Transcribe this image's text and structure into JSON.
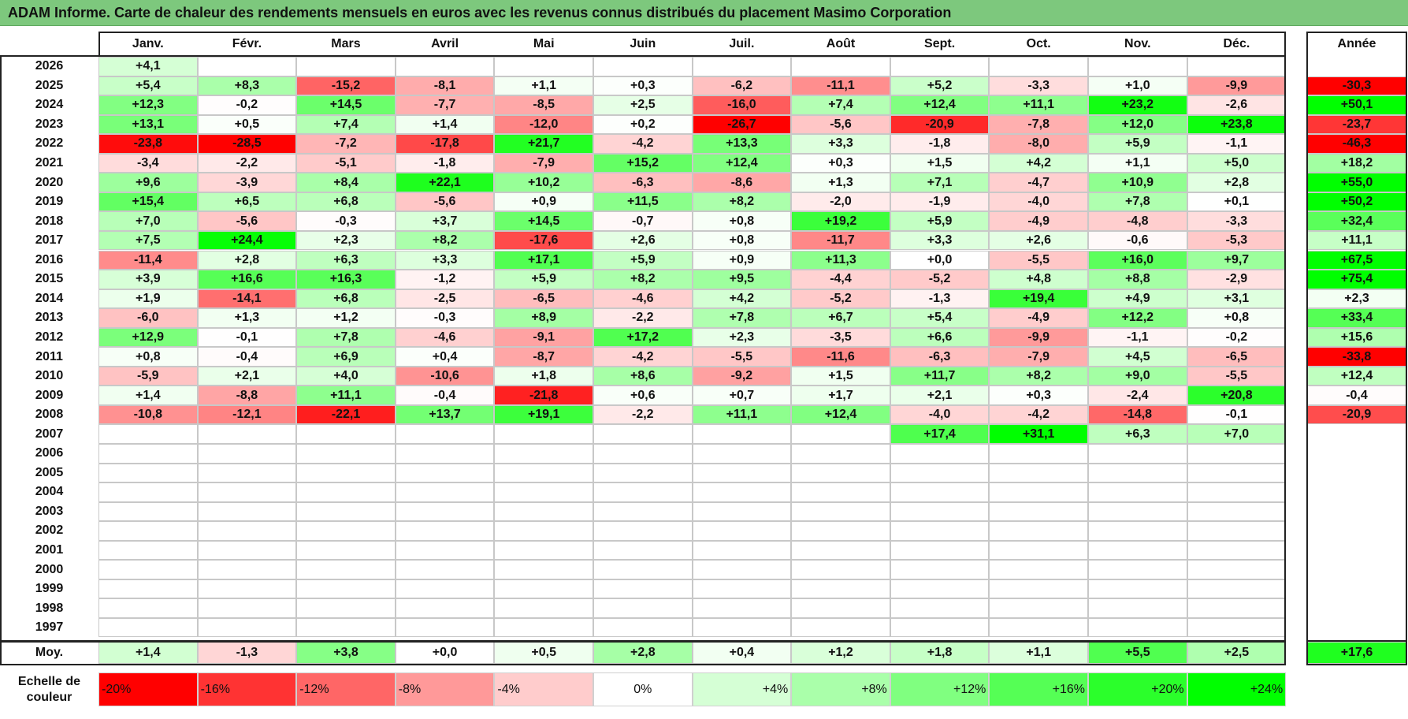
{
  "title": "ADAM Informe. Carte de chaleur des rendements mensuels en euros avec les revenus connus distribués du placement Masimo Corporation",
  "months": [
    "Janv.",
    "Févr.",
    "Mars",
    "Avril",
    "Mai",
    "Juin",
    "Juil.",
    "Août",
    "Sept.",
    "Oct.",
    "Nov.",
    "Déc."
  ],
  "year_header": "Année",
  "avg_label": "Moy.",
  "scale_label_line1": "Echelle de",
  "scale_label_line2": "couleur",
  "scale": [
    "-20%",
    "-16%",
    "-12%",
    "-8%",
    "-4%",
    "0%",
    "+4%",
    "+8%",
    "+12%",
    "+16%",
    "+20%",
    "+24%"
  ],
  "colors": {
    "neg_max": "#ff0000",
    "neutral": "#ffffff",
    "pos_max": "#00ff00",
    "title_bg": "#7dc87d"
  },
  "chart_data": {
    "type": "heatmap",
    "title": "ADAM Informe. Carte de chaleur des rendements mensuels en euros avec les revenus connus distribués du placement Masimo Corporation",
    "columns": [
      "Janv.",
      "Févr.",
      "Mars",
      "Avril",
      "Mai",
      "Juin",
      "Juil.",
      "Août",
      "Sept.",
      "Oct.",
      "Nov.",
      "Déc."
    ],
    "rows": [
      {
        "year": "2026",
        "values": [
          "+4,1",
          "",
          "",
          "",
          "",
          "",
          "",
          "",
          "",
          "",
          "",
          ""
        ],
        "annual": ""
      },
      {
        "year": "2025",
        "values": [
          "+5,4",
          "+8,3",
          "-15,2",
          "-8,1",
          "+1,1",
          "+0,3",
          "-6,2",
          "-11,1",
          "+5,2",
          "-3,3",
          "+1,0",
          "-9,9"
        ],
        "annual": "-30,3"
      },
      {
        "year": "2024",
        "values": [
          "+12,3",
          "-0,2",
          "+14,5",
          "-7,7",
          "-8,5",
          "+2,5",
          "-16,0",
          "+7,4",
          "+12,4",
          "+11,1",
          "+23,2",
          "-2,6"
        ],
        "annual": "+50,1"
      },
      {
        "year": "2023",
        "values": [
          "+13,1",
          "+0,5",
          "+7,4",
          "+1,4",
          "-12,0",
          "+0,2",
          "-26,7",
          "-5,6",
          "-20,9",
          "-7,8",
          "+12,0",
          "+23,8"
        ],
        "annual": "-23,7"
      },
      {
        "year": "2022",
        "values": [
          "-23,8",
          "-28,5",
          "-7,2",
          "-17,8",
          "+21,7",
          "-4,2",
          "+13,3",
          "+3,3",
          "-1,8",
          "-8,0",
          "+5,9",
          "-1,1"
        ],
        "annual": "-46,3"
      },
      {
        "year": "2021",
        "values": [
          "-3,4",
          "-2,2",
          "-5,1",
          "-1,8",
          "-7,9",
          "+15,2",
          "+12,4",
          "+0,3",
          "+1,5",
          "+4,2",
          "+1,1",
          "+5,0"
        ],
        "annual": "+18,2"
      },
      {
        "year": "2020",
        "values": [
          "+9,6",
          "-3,9",
          "+8,4",
          "+22,1",
          "+10,2",
          "-6,3",
          "-8,6",
          "+1,3",
          "+7,1",
          "-4,7",
          "+10,9",
          "+2,8"
        ],
        "annual": "+55,0"
      },
      {
        "year": "2019",
        "values": [
          "+15,4",
          "+6,5",
          "+6,8",
          "-5,6",
          "+0,9",
          "+11,5",
          "+8,2",
          "-2,0",
          "-1,9",
          "-4,0",
          "+7,8",
          "+0,1"
        ],
        "annual": "+50,2"
      },
      {
        "year": "2018",
        "values": [
          "+7,0",
          "-5,6",
          "-0,3",
          "+3,7",
          "+14,5",
          "-0,7",
          "+0,8",
          "+19,2",
          "+5,9",
          "-4,9",
          "-4,8",
          "-3,3"
        ],
        "annual": "+32,4"
      },
      {
        "year": "2017",
        "values": [
          "+7,5",
          "+24,4",
          "+2,3",
          "+8,2",
          "-17,6",
          "+2,6",
          "+0,8",
          "-11,7",
          "+3,3",
          "+2,6",
          "-0,6",
          "-5,3"
        ],
        "annual": "+11,1"
      },
      {
        "year": "2016",
        "values": [
          "-11,4",
          "+2,8",
          "+6,3",
          "+3,3",
          "+17,1",
          "+5,9",
          "+0,9",
          "+11,3",
          "+0,0",
          "-5,5",
          "+16,0",
          "+9,7"
        ],
        "annual": "+67,5"
      },
      {
        "year": "2015",
        "values": [
          "+3,9",
          "+16,6",
          "+16,3",
          "-1,2",
          "+5,9",
          "+8,2",
          "+9,5",
          "-4,4",
          "-5,2",
          "+4,8",
          "+8,8",
          "-2,9"
        ],
        "annual": "+75,4"
      },
      {
        "year": "2014",
        "values": [
          "+1,9",
          "-14,1",
          "+6,8",
          "-2,5",
          "-6,5",
          "-4,6",
          "+4,2",
          "-5,2",
          "-1,3",
          "+19,4",
          "+4,9",
          "+3,1"
        ],
        "annual": "+2,3"
      },
      {
        "year": "2013",
        "values": [
          "-6,0",
          "+1,3",
          "+1,2",
          "-0,3",
          "+8,9",
          "-2,2",
          "+7,8",
          "+6,7",
          "+5,4",
          "-4,9",
          "+12,2",
          "+0,8"
        ],
        "annual": "+33,4"
      },
      {
        "year": "2012",
        "values": [
          "+12,9",
          "-0,1",
          "+7,8",
          "-4,6",
          "-9,1",
          "+17,2",
          "+2,3",
          "-3,5",
          "+6,6",
          "-9,9",
          "-1,1",
          "-0,2"
        ],
        "annual": "+15,6"
      },
      {
        "year": "2011",
        "values": [
          "+0,8",
          "-0,4",
          "+6,9",
          "+0,4",
          "-8,7",
          "-4,2",
          "-5,5",
          "-11,6",
          "-6,3",
          "-7,9",
          "+4,5",
          "-6,5"
        ],
        "annual": "-33,8"
      },
      {
        "year": "2010",
        "values": [
          "-5,9",
          "+2,1",
          "+4,0",
          "-10,6",
          "+1,8",
          "+8,6",
          "-9,2",
          "+1,5",
          "+11,7",
          "+8,2",
          "+9,0",
          "-5,5"
        ],
        "annual": "+12,4"
      },
      {
        "year": "2009",
        "values": [
          "+1,4",
          "-8,8",
          "+11,1",
          "-0,4",
          "-21,8",
          "+0,6",
          "+0,7",
          "+1,7",
          "+2,1",
          "+0,3",
          "-2,4",
          "+20,8"
        ],
        "annual": "-0,4"
      },
      {
        "year": "2008",
        "values": [
          "-10,8",
          "-12,1",
          "-22,1",
          "+13,7",
          "+19,1",
          "-2,2",
          "+11,1",
          "+12,4",
          "-4,0",
          "-4,2",
          "-14,8",
          "-0,1"
        ],
        "annual": "-20,9"
      },
      {
        "year": "2007",
        "values": [
          "",
          "",
          "",
          "",
          "",
          "",
          "",
          "",
          "+17,4",
          "+31,1",
          "+6,3",
          "+7,0"
        ],
        "annual": ""
      },
      {
        "year": "2006",
        "values": [
          "",
          "",
          "",
          "",
          "",
          "",
          "",
          "",
          "",
          "",
          "",
          ""
        ],
        "annual": ""
      },
      {
        "year": "2005",
        "values": [
          "",
          "",
          "",
          "",
          "",
          "",
          "",
          "",
          "",
          "",
          "",
          ""
        ],
        "annual": ""
      },
      {
        "year": "2004",
        "values": [
          "",
          "",
          "",
          "",
          "",
          "",
          "",
          "",
          "",
          "",
          "",
          ""
        ],
        "annual": ""
      },
      {
        "year": "2003",
        "values": [
          "",
          "",
          "",
          "",
          "",
          "",
          "",
          "",
          "",
          "",
          "",
          ""
        ],
        "annual": ""
      },
      {
        "year": "2002",
        "values": [
          "",
          "",
          "",
          "",
          "",
          "",
          "",
          "",
          "",
          "",
          "",
          ""
        ],
        "annual": ""
      },
      {
        "year": "2001",
        "values": [
          "",
          "",
          "",
          "",
          "",
          "",
          "",
          "",
          "",
          "",
          "",
          ""
        ],
        "annual": ""
      },
      {
        "year": "2000",
        "values": [
          "",
          "",
          "",
          "",
          "",
          "",
          "",
          "",
          "",
          "",
          "",
          ""
        ],
        "annual": ""
      },
      {
        "year": "1999",
        "values": [
          "",
          "",
          "",
          "",
          "",
          "",
          "",
          "",
          "",
          "",
          "",
          ""
        ],
        "annual": ""
      },
      {
        "year": "1998",
        "values": [
          "",
          "",
          "",
          "",
          "",
          "",
          "",
          "",
          "",
          "",
          "",
          ""
        ],
        "annual": ""
      },
      {
        "year": "1997",
        "values": [
          "",
          "",
          "",
          "",
          "",
          "",
          "",
          "",
          "",
          "",
          "",
          ""
        ],
        "annual": ""
      }
    ],
    "averages": [
      "+1,4",
      "-1,3",
      "+3,8",
      "+0,0",
      "+0,5",
      "+2,8",
      "+0,4",
      "+1,2",
      "+1,8",
      "+1,1",
      "+5,5",
      "+2,5"
    ],
    "annual_average": "+17,6",
    "color_scale_min": -20,
    "color_scale_max": 24
  }
}
